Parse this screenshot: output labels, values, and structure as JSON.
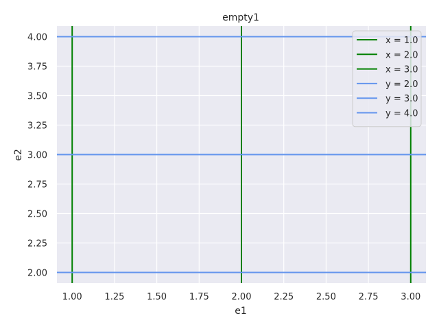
{
  "chart_data": {
    "type": "line",
    "title": "empty1",
    "xlabel": "e1",
    "ylabel": "e2",
    "xlim": [
      0.91,
      3.09
    ],
    "ylim": [
      1.91,
      4.09
    ],
    "xticks": [
      1.0,
      1.25,
      1.5,
      1.75,
      2.0,
      2.25,
      2.5,
      2.75,
      3.0
    ],
    "xtick_labels": [
      "1.00",
      "1.25",
      "1.50",
      "1.75",
      "2.00",
      "2.25",
      "2.50",
      "2.75",
      "3.00"
    ],
    "yticks": [
      2.0,
      2.25,
      2.5,
      2.75,
      3.0,
      3.25,
      3.5,
      3.75,
      4.0
    ],
    "ytick_labels": [
      "2.00",
      "2.25",
      "2.50",
      "2.75",
      "3.00",
      "3.25",
      "3.50",
      "3.75",
      "4.00"
    ],
    "grid": true,
    "legend_position": "top-right",
    "background_color": "#eaeaf2",
    "vlines": [
      {
        "name": "x = 1.0",
        "x": 1.0,
        "color": "#008000"
      },
      {
        "name": "x = 2.0",
        "x": 2.0,
        "color": "#008000"
      },
      {
        "name": "x = 3.0",
        "x": 3.0,
        "color": "#008000"
      }
    ],
    "hlines": [
      {
        "name": "y = 2.0",
        "y": 2.0,
        "color": "#6495ed"
      },
      {
        "name": "y = 3.0",
        "y": 3.0,
        "color": "#6495ed"
      },
      {
        "name": "y = 4.0",
        "y": 4.0,
        "color": "#6495ed"
      }
    ]
  }
}
